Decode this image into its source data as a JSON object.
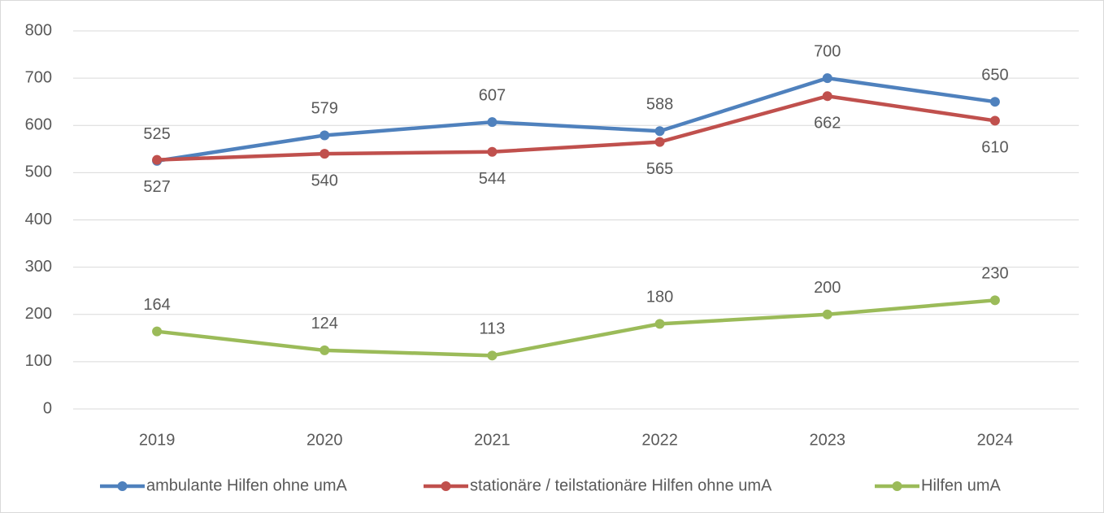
{
  "chart_data": {
    "type": "line",
    "categories": [
      "2019",
      "2020",
      "2021",
      "2022",
      "2023",
      "2024"
    ],
    "series": [
      {
        "name": "ambulante Hilfen ohne umA",
        "color": "#4f81bd",
        "values": [
          525,
          579,
          607,
          588,
          700,
          650
        ]
      },
      {
        "name": "stationäre / teilstationäre Hilfen ohne umA",
        "color": "#c0504d",
        "values": [
          527,
          540,
          544,
          565,
          662,
          610
        ]
      },
      {
        "name": "Hilfen umA",
        "color": "#9bbb59",
        "values": [
          164,
          124,
          113,
          180,
          200,
          230
        ]
      }
    ],
    "ylim": [
      0,
      800
    ],
    "yticks": [
      0,
      100,
      200,
      300,
      400,
      500,
      600,
      700,
      800
    ],
    "grid": true,
    "legend": "bottom"
  }
}
